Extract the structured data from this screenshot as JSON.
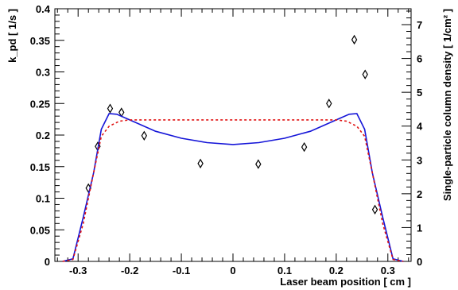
{
  "chart_data": {
    "type": "scatter",
    "xlabel": "Laser beam position [ cm ]",
    "ylabel_left": "k_pd [ 1/s ]",
    "ylabel_right": "Single-particle column density [ 1/cm² ]",
    "xlim": [
      -0.345,
      0.345
    ],
    "ylim_left": [
      0,
      0.4
    ],
    "ylim_right": [
      0,
      7.47
    ],
    "x_ticks": [
      "-0.3",
      "-0.2",
      "-0.1",
      "0",
      "0.1",
      "0.2",
      "0.3"
    ],
    "y_ticks_left": [
      "0",
      "0.05",
      "0.1",
      "0.15",
      "0.2",
      "0.25",
      "0.3",
      "0.35",
      "0.4"
    ],
    "y_ticks_right": [
      "0",
      "1",
      "2",
      "3",
      "4",
      "5",
      "6",
      "7"
    ],
    "grid": false,
    "legend": "none",
    "series": [
      {
        "style": "diamond-markers",
        "color": "#000000",
        "axis": "left",
        "x": [
          -0.28,
          -0.262,
          -0.238,
          -0.216,
          -0.172,
          -0.063,
          0.049,
          0.138,
          0.186,
          0.235,
          0.256,
          0.275
        ],
        "y": [
          0.116,
          0.182,
          0.242,
          0.236,
          0.199,
          0.155,
          0.154,
          0.181,
          0.25,
          0.351,
          0.296,
          0.082
        ]
      },
      {
        "style": "solid-line",
        "color": "#1515d8",
        "axis": "left",
        "x": [
          -0.33,
          -0.31,
          -0.29,
          -0.27,
          -0.255,
          -0.24,
          -0.225,
          -0.2,
          -0.15,
          -0.1,
          -0.05,
          0.0,
          0.05,
          0.1,
          0.15,
          0.2,
          0.225,
          0.24,
          0.255,
          0.27,
          0.29,
          0.31,
          0.33
        ],
        "y": [
          0.0,
          0.004,
          0.07,
          0.14,
          0.209,
          0.234,
          0.233,
          0.224,
          0.206,
          0.195,
          0.188,
          0.185,
          0.188,
          0.195,
          0.206,
          0.224,
          0.233,
          0.234,
          0.209,
          0.14,
          0.07,
          0.004,
          0.0
        ]
      },
      {
        "style": "dashed-line",
        "color": "#e01212",
        "axis": "left",
        "x": [
          -0.33,
          -0.31,
          -0.29,
          -0.27,
          -0.255,
          -0.24,
          -0.22,
          -0.2,
          0.0,
          0.2,
          0.22,
          0.24,
          0.255,
          0.27,
          0.29,
          0.31,
          0.33
        ],
        "y": [
          0.0,
          0.003,
          0.06,
          0.14,
          0.198,
          0.214,
          0.222,
          0.224,
          0.224,
          0.224,
          0.222,
          0.214,
          0.198,
          0.14,
          0.06,
          0.003,
          0.0
        ]
      }
    ]
  }
}
